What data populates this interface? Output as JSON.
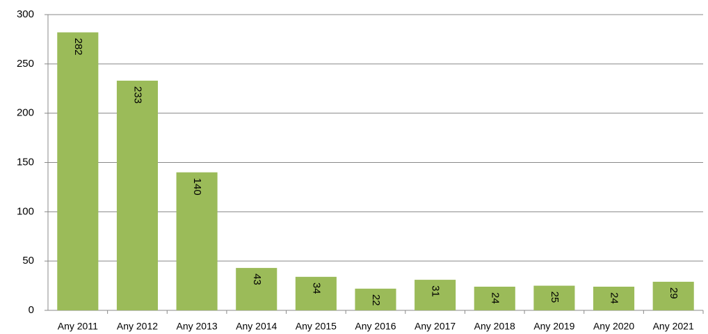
{
  "chart_data": {
    "type": "bar",
    "categories": [
      "Any 2011",
      "Any 2012",
      "Any 2013",
      "Any 2014",
      "Any 2015",
      "Any 2016",
      "Any 2017",
      "Any 2018",
      "Any 2019",
      "Any 2020",
      "Any 2021"
    ],
    "values": [
      282,
      233,
      140,
      43,
      34,
      22,
      31,
      24,
      25,
      24,
      29
    ],
    "color": "#9bbb59",
    "ylim": [
      0,
      300
    ],
    "yticks": [
      0,
      50,
      100,
      150,
      200,
      250,
      300
    ],
    "grid": true
  }
}
